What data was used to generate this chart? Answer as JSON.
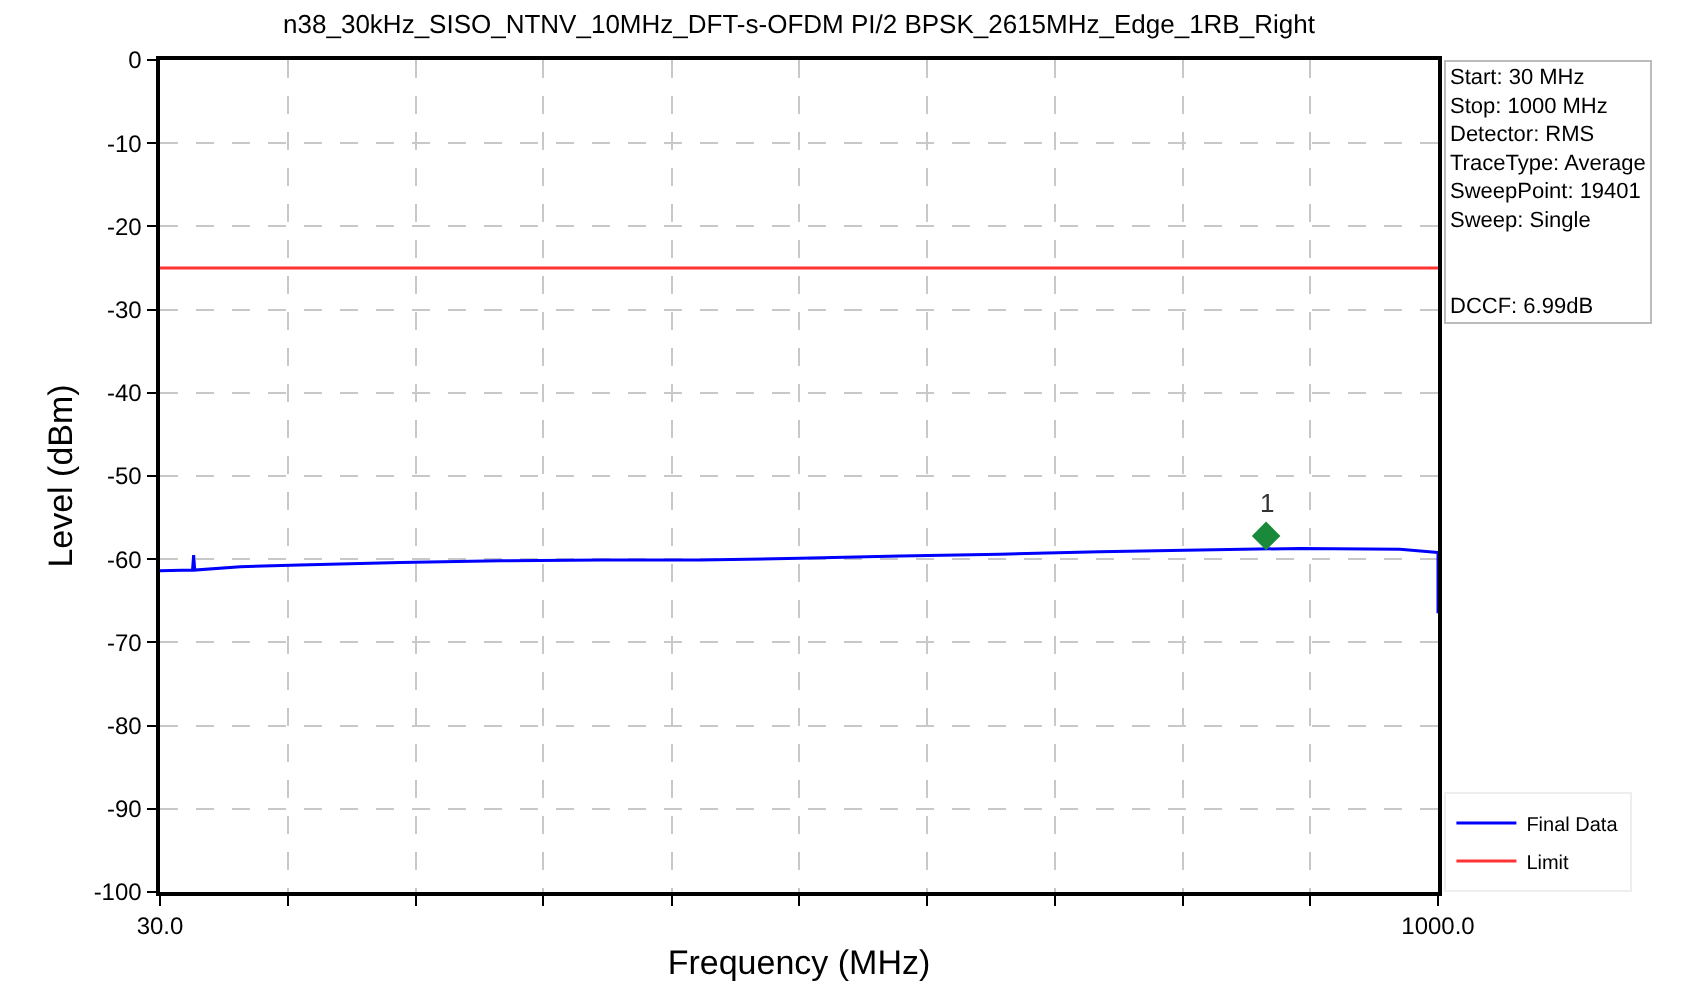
{
  "chart_data": {
    "type": "line",
    "title": "n38_30kHz_SISO_NTNV_10MHz_DFT-s-OFDM PI/2 BPSK_2615MHz_Edge_1RB_Right",
    "xlabel": "Frequency (MHz)",
    "ylabel": "Level (dBm)",
    "log": "x",
    "xlim": [
      30,
      1000
    ],
    "xticks": [
      {
        "value": 30,
        "label": "30.0"
      },
      {
        "value": 42.6,
        "label": null
      },
      {
        "value": 60.5,
        "label": null
      },
      {
        "value": 85.9,
        "label": null
      },
      {
        "value": 122.1,
        "label": null
      },
      {
        "value": 173.2,
        "label": null
      },
      {
        "value": 246,
        "label": null
      },
      {
        "value": 349.4,
        "label": null
      },
      {
        "value": 496.2,
        "label": null
      },
      {
        "value": 704.7,
        "label": null
      },
      {
        "value": 1000,
        "label": "1000.0"
      }
    ],
    "ylim": [
      -100,
      0
    ],
    "yticks": [
      -100,
      -90,
      -80,
      -70,
      -60,
      -50,
      -40,
      -30,
      -20,
      -10,
      0
    ],
    "grid": true,
    "legend": "bottom right",
    "series": [
      {
        "name": "Final Data",
        "color": "#0000ff",
        "marker": "none",
        "x": [
          30,
          32.8,
          32.9,
          33,
          37.4,
          44,
          58,
          76.3,
          100.4,
          132,
          173.7,
          228.5,
          300.6,
          395,
          520,
          685,
          901,
          1000,
          1000
        ],
        "values": [
          -61.4,
          -61.3,
          -59.5,
          -61.3,
          -60.9,
          -60.7,
          -60.4,
          -60.2,
          -60.1,
          -60.1,
          -59.9,
          -59.6,
          -59.4,
          -59.1,
          -58.9,
          -58.7,
          -58.8,
          -59.2,
          -66.5
        ]
      },
      {
        "name": "Limit",
        "type": "line",
        "color": "#ff3333",
        "marker": "none",
        "x": [
          30,
          1000
        ],
        "values": [
          -25,
          -25
        ]
      },
      {
        "type": "scatter",
        "color": "#1a8a3a",
        "marker": "diamond",
        "x": [
          624
        ],
        "values": [
          -57.2
        ]
      }
    ],
    "annotations": [
      {
        "text": "1",
        "x": 624,
        "y": -57.2
      },
      "Start: 30 MHz",
      "Stop: 1000 MHz",
      "Detector: RMS",
      "TraceType: Average",
      "SweepPoint: 19401",
      "Sweep: Single",
      "DCCF: 6.99dB"
    ]
  }
}
